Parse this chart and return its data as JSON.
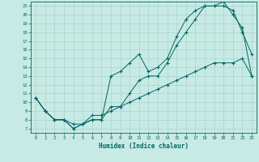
{
  "xlabel": "Humidex (Indice chaleur)",
  "ylabel": "",
  "bg_color": "#c8eae4",
  "grid_color": "#a8d4cc",
  "line_color": "#006666",
  "xlim": [
    -0.5,
    23.5
  ],
  "ylim": [
    6.5,
    21.5
  ],
  "xticks": [
    0,
    1,
    2,
    3,
    4,
    5,
    6,
    7,
    8,
    9,
    10,
    11,
    12,
    13,
    14,
    15,
    16,
    17,
    18,
    19,
    20,
    21,
    22,
    23
  ],
  "yticks": [
    7,
    8,
    9,
    10,
    11,
    12,
    13,
    14,
    15,
    16,
    17,
    18,
    19,
    20,
    21
  ],
  "line1_x": [
    0,
    1,
    2,
    3,
    4,
    5,
    6,
    7,
    8,
    9,
    10,
    11,
    12,
    13,
    14,
    15,
    16,
    17,
    18,
    19,
    20,
    21,
    22,
    23
  ],
  "line1_y": [
    10.5,
    9.0,
    8.0,
    8.0,
    7.0,
    7.5,
    8.0,
    8.0,
    9.5,
    9.5,
    11.0,
    12.5,
    13.0,
    13.0,
    14.5,
    16.5,
    18.0,
    19.5,
    21.0,
    21.0,
    21.0,
    20.5,
    18.0,
    15.5
  ],
  "line2_x": [
    0,
    1,
    2,
    3,
    4,
    5,
    6,
    7,
    8,
    9,
    10,
    11,
    12,
    13,
    14,
    15,
    16,
    17,
    18,
    19,
    20,
    21,
    22,
    23
  ],
  "line2_y": [
    10.5,
    9.0,
    8.0,
    8.0,
    7.0,
    7.5,
    8.0,
    8.0,
    13.0,
    13.5,
    14.5,
    15.5,
    13.5,
    14.0,
    15.0,
    17.5,
    19.5,
    20.5,
    21.0,
    21.0,
    21.5,
    20.0,
    18.5,
    13.0
  ],
  "line3_x": [
    0,
    1,
    2,
    3,
    4,
    5,
    6,
    7,
    8,
    9,
    10,
    11,
    12,
    13,
    14,
    15,
    16,
    17,
    18,
    19,
    20,
    21,
    22,
    23
  ],
  "line3_y": [
    10.5,
    9.0,
    8.0,
    8.0,
    7.5,
    7.5,
    8.5,
    8.5,
    9.0,
    9.5,
    10.0,
    10.5,
    11.0,
    11.5,
    12.0,
    12.5,
    13.0,
    13.5,
    14.0,
    14.5,
    14.5,
    14.5,
    15.0,
    13.0
  ]
}
